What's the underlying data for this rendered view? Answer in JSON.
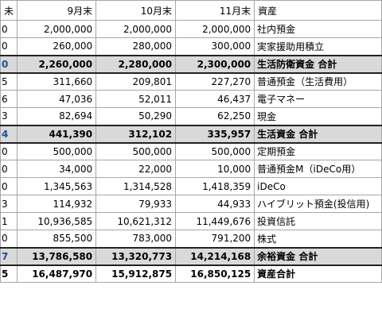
{
  "columns": {
    "lead": "未",
    "sep": "9月末",
    "oct": "10月末",
    "nov": "11月末",
    "label": "資産"
  },
  "rows": [
    {
      "lead": "0",
      "sep": "2,000,000",
      "oct": "2,000,000",
      "nov": "2,000,000",
      "label": "社内預金"
    },
    {
      "lead": "0",
      "sep": "260,000",
      "oct": "280,000",
      "nov": "300,000",
      "label": "実家援助用積立"
    },
    {
      "lead": "0",
      "sep": "2,260,000",
      "oct": "2,280,000",
      "nov": "2,300,000",
      "label": "生活防衛資金 合計"
    },
    {
      "lead": "5",
      "sep": "311,660",
      "oct": "209,801",
      "nov": "227,270",
      "label": "普通預金（生活費用）"
    },
    {
      "lead": "6",
      "sep": "47,036",
      "oct": "52,011",
      "nov": "46,437",
      "label": "電子マネー"
    },
    {
      "lead": "3",
      "sep": "82,694",
      "oct": "50,290",
      "nov": "62,250",
      "label": "現金"
    },
    {
      "lead": "4",
      "sep": "441,390",
      "oct": "312,102",
      "nov": "335,957",
      "label": "生活資金 合計"
    },
    {
      "lead": "0",
      "sep": "500,000",
      "oct": "500,000",
      "nov": "500,000",
      "label": "定期預金"
    },
    {
      "lead": "0",
      "sep": "34,000",
      "oct": "22,000",
      "nov": "10,000",
      "label": "普通預金M（iDeCo用）"
    },
    {
      "lead": "0",
      "sep": "1,345,563",
      "oct": "1,314,528",
      "nov": "1,418,359",
      "label": "iDeCo"
    },
    {
      "lead": "3",
      "sep": "114,932",
      "oct": "79,933",
      "nov": "44,933",
      "label": "ハイブリット預金(投信用)"
    },
    {
      "lead": "1",
      "sep": "10,936,585",
      "oct": "10,621,312",
      "nov": "11,449,676",
      "label": "投資信託"
    },
    {
      "lead": "0",
      "sep": "855,500",
      "oct": "783,000",
      "nov": "791,200",
      "label": "株式"
    },
    {
      "lead": "7",
      "sep": "13,786,580",
      "oct": "13,320,773",
      "nov": "14,214,168",
      "label": "余裕資金 合計"
    },
    {
      "lead": "5",
      "sep": "16,487,970",
      "oct": "15,912,875",
      "nov": "16,850,125",
      "label": "資産合計"
    }
  ]
}
